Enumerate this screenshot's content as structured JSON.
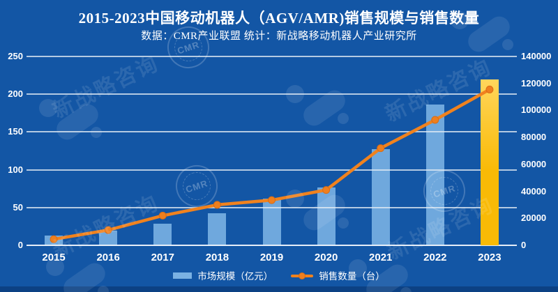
{
  "header": {
    "title": "2015-2023中国移动机器人（AGV/AMR)销售规模与销售数量",
    "subtitle": "数据：CMR产业联盟 统计：新战略移动机器人产业研究所"
  },
  "colors": {
    "background": "#1356a5",
    "bar_blue": "#7ab1e3",
    "bar_gold_top": "#ffd65c",
    "bar_gold_bottom": "#f9ba06",
    "line_orange": "#f0821e",
    "marker_orange": "#ee7f1f",
    "marker_stroke": "#d96c14",
    "gridline": "#e2eaf3",
    "footer_strip": "#0c4184",
    "text": "#ffffff"
  },
  "chart_data": {
    "type": "bar",
    "categories": [
      "2015",
      "2016",
      "2017",
      "2018",
      "2019",
      "2020",
      "2021",
      "2022",
      "2023"
    ],
    "series": [
      {
        "name": "市场规模（亿元）",
        "type": "bar",
        "axis": "left",
        "values": [
          12.5,
          19,
          29,
          42,
          62,
          77,
          127,
          186,
          220
        ],
        "highlight_last": true
      },
      {
        "name": "销售数量（台）",
        "type": "line",
        "axis": "right",
        "values": [
          4500,
          11300,
          22000,
          30000,
          33500,
          41000,
          72000,
          93000,
          115500
        ]
      }
    ],
    "title": "2015-2023中国移动机器人（AGV/AMR)销售规模与销售数量",
    "xlabel": "",
    "ylabel_left": "市场规模 (亿元)",
    "ylabel_right": "销售数量 (台)",
    "left_axis": {
      "ticks": [
        0,
        50,
        100,
        150,
        200,
        250
      ],
      "min": 0,
      "max": 250
    },
    "right_axis": {
      "ticks": [
        0,
        20000,
        40000,
        60000,
        80000,
        100000,
        120000,
        140000
      ],
      "min": 0,
      "max": 140000
    },
    "grid": true,
    "legend_position": "bottom"
  },
  "legend": {
    "bar_label": "市场规模（亿元）",
    "line_label": "销售数量（台）"
  },
  "watermark": {
    "text": "新战略咨询",
    "seal_text": "CMR"
  }
}
